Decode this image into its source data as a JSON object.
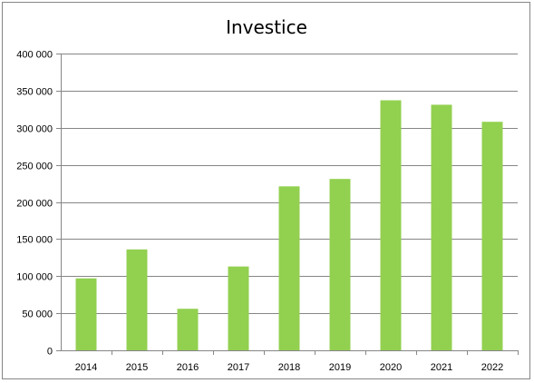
{
  "chart_data": {
    "type": "bar",
    "title": "Investice",
    "xlabel": "",
    "ylabel": "",
    "categories": [
      "2014",
      "2015",
      "2016",
      "2017",
      "2018",
      "2019",
      "2020",
      "2021",
      "2022"
    ],
    "series": [
      {
        "values": [
          97000,
          136000,
          56000,
          113000,
          221000,
          231000,
          337000,
          331000,
          308000
        ]
      }
    ],
    "ylim": [
      0,
      400000
    ],
    "yticks": [
      0,
      50000,
      100000,
      150000,
      200000,
      250000,
      300000,
      350000,
      400000
    ],
    "ytick_labels": [
      "0",
      "50 000",
      "100 000",
      "150 000",
      "200 000",
      "250 000",
      "300 000",
      "350 000",
      "400 000"
    ],
    "grid": "horizontal",
    "legend": "none",
    "colors": {
      "bar": "#92d050",
      "grid": "#868686",
      "axis": "#868686"
    }
  }
}
